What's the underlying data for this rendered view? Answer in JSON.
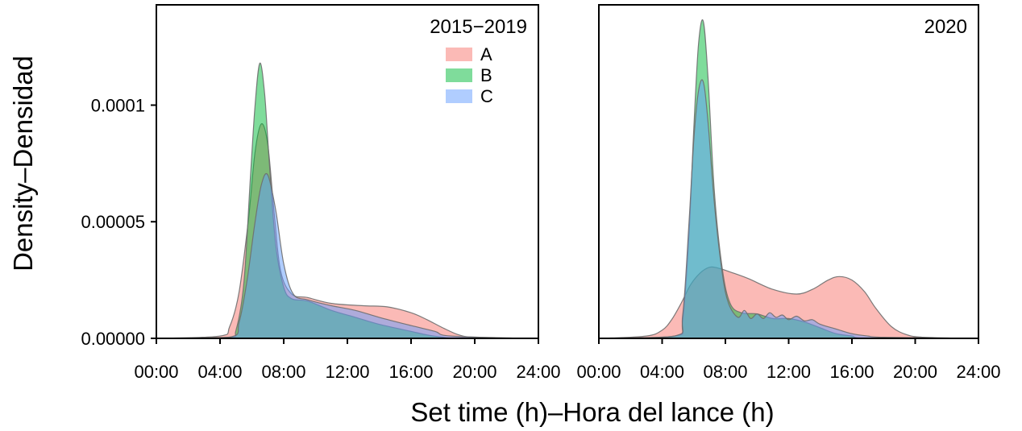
{
  "chart_data": {
    "type": "area",
    "xlabel": "Set time (h)–Hora del lance (h)",
    "ylabel": "Density–Densidad",
    "x_unit": "hours",
    "xlim": [
      0,
      24
    ],
    "ylim": [
      0,
      0.000143
    ],
    "x_ticks": [
      "00:00",
      "04:00",
      "08:00",
      "12:00",
      "16:00",
      "20:00",
      "24:00"
    ],
    "x_tick_hours": [
      0,
      4,
      8,
      12,
      16,
      20,
      24
    ],
    "y_ticks": [
      "0.00000",
      "0.00005",
      "0.0001"
    ],
    "y_tick_values": [
      0,
      5e-05,
      0.0001
    ],
    "legend": {
      "position": "top-right",
      "entries": [
        {
          "name": "A",
          "color": "#f8766d"
        },
        {
          "name": "B",
          "color": "#00ba38"
        },
        {
          "name": "C",
          "color": "#619cff"
        }
      ]
    },
    "series_colors": {
      "A": "#f8766d",
      "B": "#00ba38",
      "C": "#619cff"
    },
    "panels": [
      {
        "title": "2015−2019",
        "series": [
          {
            "name": "A",
            "x": [
              0.2,
              4.0,
              4.6,
              5.2,
              5.8,
              6.2,
              6.6,
              7.0,
              7.4,
              7.8,
              8.5,
              9.5,
              11.0,
              13.0,
              14.5,
              16.0,
              17.0,
              18.0,
              19.0,
              20.0,
              23.3
            ],
            "y": [
              0,
              1e-06,
              5e-06,
              2e-05,
              5.2e-05,
              8e-05,
              9.2e-05,
              8.3e-05,
              5.4e-05,
              2.9e-05,
              1.9e-05,
              1.75e-05,
              1.5e-05,
              1.4e-05,
              1.35e-05,
              1.1e-05,
              8e-06,
              4.5e-06,
              1.5e-06,
              5e-07,
              0
            ]
          },
          {
            "name": "B",
            "x": [
              0.2,
              4.5,
              5.0,
              5.5,
              5.9,
              6.2,
              6.5,
              6.8,
              7.1,
              7.5,
              8.0,
              8.5,
              9.5,
              11.0,
              12.5,
              14.0,
              16.0,
              17.0,
              18.0,
              19.0,
              23.3
            ],
            "y": [
              0,
              5e-07,
              3.5e-06,
              2.4e-05,
              6.8e-05,
              0.0001,
              0.000118,
              0.000105,
              7.5e-05,
              4e-05,
              2.2e-05,
              1.7e-05,
              1.6e-05,
              1.2e-05,
              9e-06,
              6e-06,
              3e-06,
              1.5e-06,
              5e-07,
              0,
              0
            ]
          },
          {
            "name": "C",
            "x": [
              0.2,
              4.6,
              5.2,
              5.7,
              6.2,
              6.6,
              7.0,
              7.5,
              8.0,
              8.6,
              9.5,
              11.0,
              12.5,
              14.0,
              16.0,
              17.5,
              18.5,
              23.3
            ],
            "y": [
              0,
              5e-07,
              7e-06,
              2.5e-05,
              5e-05,
              6.6e-05,
              7e-05,
              5.5e-05,
              3.2e-05,
              1.9e-05,
              1.65e-05,
              1.4e-05,
              1.2e-05,
              9e-06,
              5.5e-06,
              3e-06,
              1e-06,
              0
            ]
          }
        ]
      },
      {
        "title": "2020",
        "series": [
          {
            "name": "A",
            "x": [
              0.2,
              3.0,
              4.0,
              4.6,
              5.2,
              5.8,
              6.4,
              7.0,
              7.6,
              8.5,
              9.5,
              11.0,
              12.5,
              13.5,
              14.5,
              15.2,
              16.0,
              16.8,
              17.5,
              18.5,
              19.5,
              20.5,
              23.3
            ],
            "y": [
              0,
              1e-06,
              3.5e-06,
              8e-06,
              1.5e-05,
              2.3e-05,
              2.8e-05,
              3.05e-05,
              3e-05,
              2.8e-05,
              2.55e-05,
              2.1e-05,
              1.9e-05,
              2.1e-05,
              2.5e-05,
              2.65e-05,
              2.5e-05,
              2e-05,
              1.3e-05,
              5e-06,
              1.5e-06,
              5e-07,
              0
            ]
          },
          {
            "name": "B",
            "x": [
              0.2,
              4.8,
              5.3,
              5.7,
              6.0,
              6.3,
              6.6,
              6.9,
              7.3,
              7.8,
              8.3,
              9.0,
              10.0,
              11.0,
              12.0,
              13.0,
              14.0,
              15.0,
              16.0,
              17.0,
              23.3
            ],
            "y": [
              0,
              1e-06,
              8e-06,
              4.5e-05,
              9e-05,
              0.000126,
              0.000136,
              0.000112,
              6.3e-05,
              3e-05,
              1.5e-05,
              1.1e-05,
              1.05e-05,
              8.5e-06,
              8.5e-06,
              7e-06,
              4.5e-06,
              2e-06,
              1e-06,
              0,
              0
            ]
          },
          {
            "name": "C",
            "x": [
              0.2,
              4.8,
              5.3,
              5.7,
              6.0,
              6.3,
              6.6,
              6.9,
              7.3,
              7.8,
              8.2,
              8.8,
              9.2,
              9.6,
              10.0,
              10.4,
              10.8,
              11.2,
              11.6,
              12.0,
              12.5,
              13.0,
              13.5,
              14.0,
              15.0,
              16.0,
              17.0,
              18.0,
              23.3
            ],
            "y": [
              0,
              1e-06,
              1e-05,
              5e-05,
              8.5e-05,
              0.000106,
              0.00011,
              9.3e-05,
              5.8e-05,
              2.8e-05,
              1.5e-05,
              9e-06,
              1.2e-05,
              8.5e-06,
              1.05e-05,
              8.5e-06,
              1.1e-05,
              9e-06,
              1e-05,
              8e-06,
              9.5e-06,
              7.5e-06,
              8e-06,
              6e-06,
              4e-06,
              2e-06,
              1e-06,
              5e-07,
              0
            ]
          }
        ]
      }
    ]
  }
}
